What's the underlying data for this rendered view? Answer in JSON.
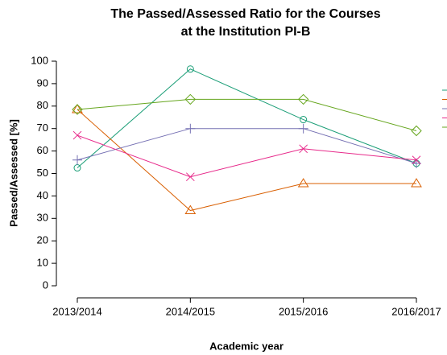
{
  "chart_data": {
    "type": "line",
    "title_lines": [
      "The Passed/Assessed Ratio for the Courses",
      "at the Institution PI-B"
    ],
    "x_label": "Academic year",
    "y_label": "Passed/Assessed [%]",
    "categories": [
      "2013/2014",
      "2014/2015",
      "2015/2016",
      "2016/2017"
    ],
    "series": [
      {
        "color": "#1b9e77",
        "marker": "circle",
        "values": [
          52.5,
          96.5,
          74,
          54.5
        ]
      },
      {
        "color": "#d95f02",
        "marker": "triangle",
        "values": [
          78.5,
          33.5,
          45.5,
          45.5
        ]
      },
      {
        "color": "#7570b3",
        "marker": "plus",
        "values": [
          56,
          70,
          70,
          54.5
        ]
      },
      {
        "color": "#e7298a",
        "marker": "cross",
        "values": [
          67,
          48.5,
          61,
          56
        ]
      },
      {
        "color": "#66a61e",
        "marker": "diamond",
        "values": [
          78.5,
          83,
          83,
          69
        ]
      }
    ],
    "ylim": [
      0,
      100
    ],
    "yticks": [
      0,
      10,
      20,
      30,
      40,
      50,
      60,
      70,
      80,
      90,
      100
    ],
    "legend": "right"
  }
}
